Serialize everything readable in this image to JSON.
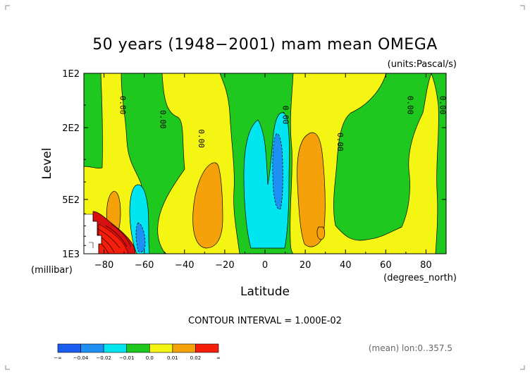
{
  "chart_data": {
    "type": "contour",
    "title": "50 years (1948−2001) mam mean OMEGA",
    "units_label": "(units:Pascal/s)",
    "xlabel": "Latitude",
    "x_units_label": "(degrees_north)",
    "ylabel": "Level",
    "y_units_label": "(millibar)",
    "x_ticks": [
      {
        "value": -80,
        "label": "−80"
      },
      {
        "value": -60,
        "label": "−60"
      },
      {
        "value": -40,
        "label": "−40"
      },
      {
        "value": -20,
        "label": "−20"
      },
      {
        "value": 0,
        "label": "0"
      },
      {
        "value": 20,
        "label": "20"
      },
      {
        "value": 40,
        "label": "40"
      },
      {
        "value": 60,
        "label": "60"
      },
      {
        "value": 80,
        "label": "80"
      }
    ],
    "y_ticks": [
      {
        "value": 100,
        "label": "1E2"
      },
      {
        "value": 200,
        "label": "2E2"
      },
      {
        "value": 500,
        "label": "5E2"
      },
      {
        "value": 1000,
        "label": "1E3"
      }
    ],
    "xlim": [
      -90,
      90
    ],
    "ylim": [
      1000,
      100
    ],
    "y_scale": "log",
    "contour_interval_label": "CONTOUR INTERVAL = 1.000E-02",
    "footnote": "(mean) lon:0..357.5",
    "zero_line_labels": [
      {
        "lat": -72,
        "level": 150,
        "text": "0.00"
      },
      {
        "lat": -52,
        "level": 180,
        "text": "0.00"
      },
      {
        "lat": -33,
        "level": 230,
        "text": "0.00"
      },
      {
        "lat": 9,
        "level": 170,
        "text": "0.00"
      },
      {
        "lat": 36,
        "level": 240,
        "text": "0.00"
      },
      {
        "lat": 71,
        "level": 150,
        "text": "0.00"
      },
      {
        "lat": 87,
        "level": 150,
        "text": "0.00"
      }
    ],
    "colorbar": {
      "colors": [
        "#1a5cf0",
        "#1e90f5",
        "#00e6f0",
        "#1ec81e",
        "#f5f514",
        "#f5a20a",
        "#f51e0a"
      ],
      "labels": [
        "−∞",
        "−0.04",
        "−0.02",
        "−0.01",
        "0.0",
        "0.01",
        "0.02",
        "∞"
      ]
    },
    "regions": [
      {
        "name": "south-polar-descending-strong",
        "color": "#d80f0f",
        "lat_range": [
          -88,
          -66
        ],
        "level_range": [
          650,
          1000
        ]
      },
      {
        "name": "south-polar-descending-moderate",
        "color": "#f5a20a",
        "lat_range": [
          -78,
          -72
        ],
        "level_range": [
          440,
          700
        ]
      },
      {
        "name": "south-subpolar-ascending-cyan",
        "color": "#00e6f0",
        "lat_range": [
          -64,
          -59
        ],
        "level_range": [
          420,
          990
        ]
      },
      {
        "name": "south-subtropic-descending-orange",
        "color": "#f5a20a",
        "lat_range": [
          -33,
          -17
        ],
        "level_range": [
          340,
          930
        ]
      },
      {
        "name": "equatorial-ascending-cyan",
        "color": "#00e6f0",
        "lat_range": [
          -8,
          12
        ],
        "level_range": [
          160,
          1000
        ]
      },
      {
        "name": "equatorial-ascending-blue",
        "color": "#1e90f5",
        "lat_range": [
          4,
          8
        ],
        "level_range": [
          220,
          530
        ]
      },
      {
        "name": "north-subtropic-descending-orange",
        "color": "#f5a20a",
        "lat_range": [
          20,
          32
        ],
        "level_range": [
          220,
          990
        ]
      }
    ]
  },
  "colors": {
    "yellow": "#f5f514",
    "green": "#1ec81e",
    "cyan": "#00e6f0",
    "blue": "#1e90f5",
    "orange": "#f5a20a",
    "red": "#d80f0f"
  }
}
